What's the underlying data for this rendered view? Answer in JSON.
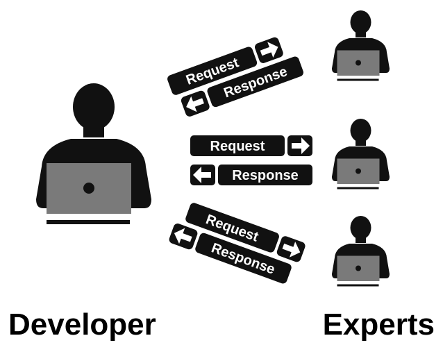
{
  "labels": {
    "developer": "Developer",
    "experts": "Experts"
  },
  "messages": {
    "request": "Request",
    "response": "Response"
  },
  "colors": {
    "figure": "#111111",
    "laptop": "#7a7a7a",
    "pill": "#111111",
    "pill_text": "#ffffff",
    "background": "#ffffff"
  },
  "icons": {
    "person": "person-at-laptop-icon",
    "arrow_right": "arrow-right-icon",
    "arrow_left": "arrow-left-icon"
  }
}
